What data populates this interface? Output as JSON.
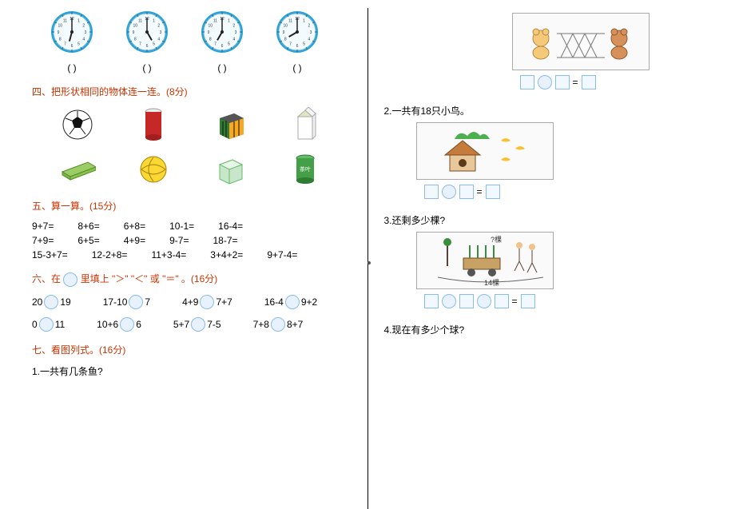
{
  "colors": {
    "section_title": "#cc3300",
    "text": "#000000",
    "background": "#ffffff",
    "blank_border": "#88bbee",
    "blank_fill": "#e8f2ff",
    "clock_rim": "#2aa3d8",
    "clock_face": "#f4fbff"
  },
  "typography": {
    "base_font_family": "SimSun",
    "base_font_size_pt": 9,
    "title_font_size_pt": 9
  },
  "left": {
    "clocks": {
      "paren_label": "(        )",
      "items": [
        {
          "hour_angle": 195,
          "minute_angle": 0
        },
        {
          "hour_angle": 150,
          "minute_angle": 0
        },
        {
          "hour_angle": 210,
          "minute_angle": 0
        },
        {
          "hour_angle": 240,
          "minute_angle": 0
        }
      ]
    },
    "section4": {
      "title": "四、把形状相同的物体连一连。(8分)",
      "row1": [
        "soccer-ball",
        "soda-can",
        "rubiks-cube",
        "milk-carton"
      ],
      "row2": [
        "money-wad",
        "volleyball",
        "green-cube",
        "tea-cylinder"
      ]
    },
    "section5": {
      "title": "五、算一算。(15分)",
      "rows": [
        [
          "9+7=",
          "8+6=",
          "6+8=",
          "10-1=",
          "16-4="
        ],
        [
          "7+9=",
          "6+5=",
          "4+9=",
          "9-7=",
          "18-7="
        ],
        [
          "15-3+7=",
          "12-2+8=",
          "11+3-4=",
          "3+4+2=",
          "9+7-4="
        ]
      ]
    },
    "section6": {
      "title_prefix": "六、在",
      "title_suffix": "里填上 \"＞\" \"＜\" 或 \"＝\" 。(16分)",
      "rows": [
        [
          {
            "left": "20",
            "right": "19"
          },
          {
            "left": "17-10",
            "right": "7"
          },
          {
            "left": "4+9",
            "right": "7+7"
          },
          {
            "left": "16-4",
            "right": "9+2"
          }
        ],
        [
          {
            "left": "0",
            "right": "11"
          },
          {
            "left": "10+6",
            "right": "6"
          },
          {
            "left": "5+7",
            "right": "7-5"
          },
          {
            "left": "7+8",
            "right": "8+7"
          }
        ]
      ]
    },
    "section7": {
      "title": "七、看图列式。(16分)",
      "q1": "1.一共有几条鱼?"
    }
  },
  "right": {
    "eq_equals": "=",
    "q2": "2.一共有18只小鸟。",
    "q3": "3.还剩多少棵?",
    "q3_top_label": "?棵",
    "q3_bottom_label": "14棵",
    "q4": "4.现在有多少个球?"
  }
}
